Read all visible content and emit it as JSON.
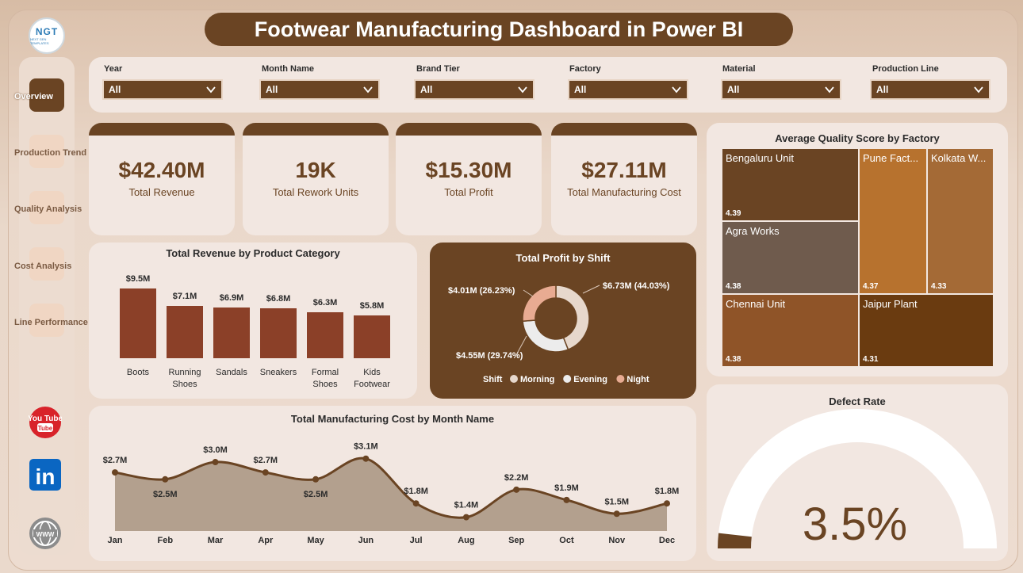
{
  "header": {
    "title": "Footwear Manufacturing Dashboard in Power BI",
    "logo_text": "NGT",
    "logo_sub": "NEXT GEN TEMPLATES"
  },
  "sidebar": {
    "items": [
      {
        "label": "Overview",
        "active": true
      },
      {
        "label": "Production Trend",
        "active": false
      },
      {
        "label": "Quality Analysis",
        "active": false
      },
      {
        "label": "Cost Analysis",
        "active": false
      },
      {
        "label": "Line Performance",
        "active": false
      }
    ],
    "social": [
      {
        "icon": "youtube-icon",
        "text": "You Tube"
      },
      {
        "icon": "linkedin-icon",
        "text": "in"
      },
      {
        "icon": "globe-icon",
        "text": "WWW"
      }
    ]
  },
  "filters": [
    {
      "label": "Year",
      "value": "All"
    },
    {
      "label": "Month Name",
      "value": "All"
    },
    {
      "label": "Brand Tier",
      "value": "All"
    },
    {
      "label": "Factory",
      "value": "All"
    },
    {
      "label": "Material",
      "value": "All"
    },
    {
      "label": "Production Line",
      "value": "All"
    }
  ],
  "kpis": [
    {
      "value": "$42.40M",
      "label": "Total Revenue"
    },
    {
      "value": "19K",
      "label": "Total Rework Units"
    },
    {
      "value": "$15.30M",
      "label": "Total Profit"
    },
    {
      "value": "$27.11M",
      "label": "Total Manufacturing Cost"
    }
  ],
  "revenue_chart": {
    "title": "Total Revenue by Product Category",
    "chart_data": {
      "type": "bar",
      "categories": [
        "Boots",
        "Running Shoes",
        "Sandals",
        "Sneakers",
        "Formal Shoes",
        "Kids Footwear"
      ],
      "values": [
        9.5,
        7.1,
        6.9,
        6.8,
        6.3,
        5.8
      ],
      "labels": [
        "$9.5M",
        "$7.1M",
        "$6.9M",
        "$6.8M",
        "$6.3M",
        "$5.8M"
      ],
      "color": "#8b4028"
    }
  },
  "shift_chart": {
    "title": "Total Profit by Shift",
    "legend_title": "Shift",
    "chart_data": {
      "type": "pie",
      "slices": [
        {
          "name": "Morning",
          "value": 6.73,
          "label": "$6.73M (44.03%)",
          "color": "#e7d8cc"
        },
        {
          "name": "Evening",
          "value": 4.55,
          "label": "$4.55M (29.74%)",
          "color": "#ececec"
        },
        {
          "name": "Night",
          "value": 4.01,
          "label": "$4.01M (26.23%)",
          "color": "#e8ab92"
        }
      ]
    }
  },
  "quality_chart": {
    "title": "Average Quality Score by Factory",
    "chart_data": {
      "type": "treemap",
      "items": [
        {
          "name": "Bengaluru Unit",
          "value": 4.39,
          "color": "#6a4423"
        },
        {
          "name": "Agra Works",
          "value": 4.38,
          "color": "#6f5b4d"
        },
        {
          "name": "Chennai Unit",
          "value": 4.38,
          "color": "#8f5428"
        },
        {
          "name": "Pune Fact...",
          "value": 4.37,
          "color": "#b7722e"
        },
        {
          "name": "Kolkata W...",
          "value": 4.33,
          "color": "#a46a36"
        },
        {
          "name": "Jaipur Plant",
          "value": 4.31,
          "color": "#6a3b10"
        }
      ]
    }
  },
  "cost_chart": {
    "title": "Total Manufacturing Cost by Month Name",
    "chart_data": {
      "type": "area",
      "categories": [
        "Jan",
        "Feb",
        "Mar",
        "Apr",
        "May",
        "Jun",
        "Jul",
        "Aug",
        "Sep",
        "Oct",
        "Nov",
        "Dec"
      ],
      "values": [
        2.7,
        2.5,
        3.0,
        2.7,
        2.5,
        3.1,
        1.8,
        1.4,
        2.2,
        1.9,
        1.5,
        1.8
      ],
      "labels": [
        "$2.7M",
        "$2.5M",
        "$3.0M",
        "$2.7M",
        "$2.5M",
        "$3.1M",
        "$1.8M",
        "$1.4M",
        "$2.2M",
        "$1.9M",
        "$1.5M",
        "$1.8M"
      ],
      "line_color": "#6a4423",
      "fill_color": "#b3a08e"
    }
  },
  "defect_chart": {
    "title": "Defect Rate",
    "value_text": "3.5%",
    "chart_data": {
      "type": "gauge",
      "value": 3.5,
      "max": 100
    }
  }
}
